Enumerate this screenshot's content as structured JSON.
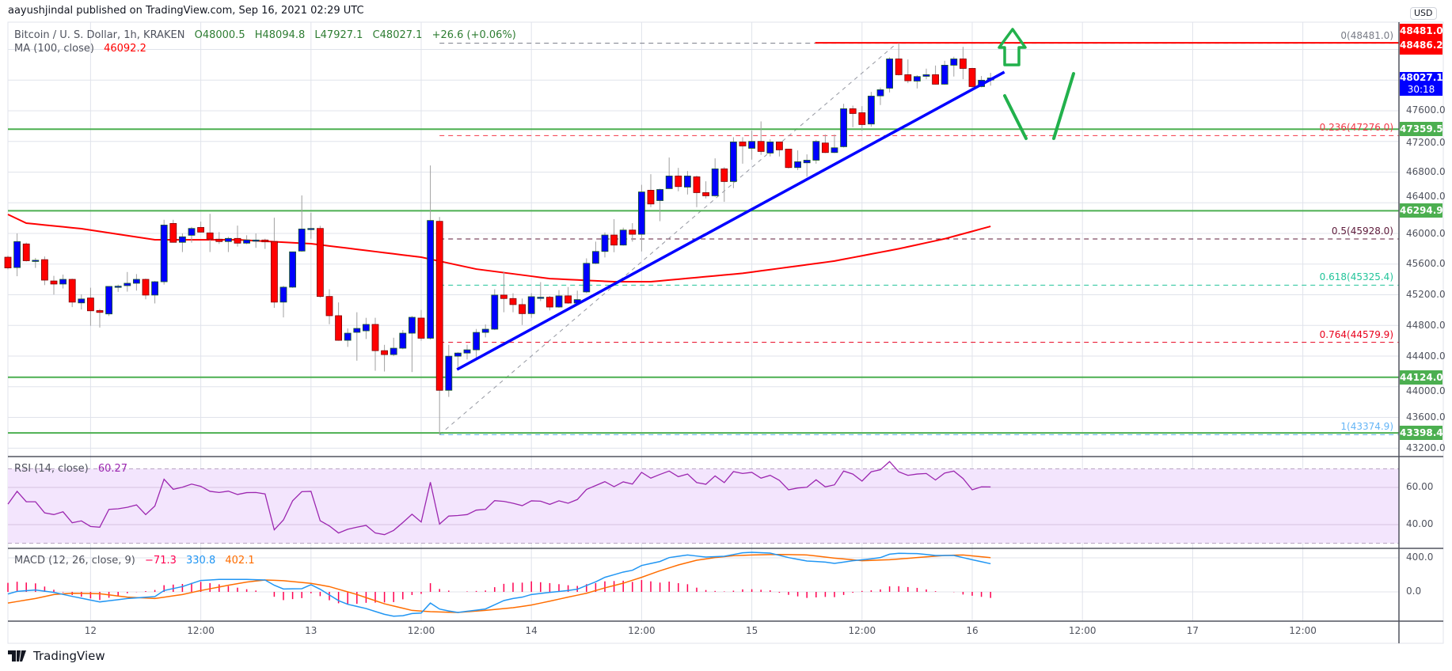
{
  "header": {
    "published": "aayushjindal published on TradingView.com, Sep 16, 2021 02:29 UTC"
  },
  "legend": {
    "symbol": "Bitcoin / U. S. Dollar, 1h, KRAKEN",
    "open": "O48000.5",
    "high": "H48094.8",
    "low": "L47927.1",
    "close": "C48027.1",
    "change": "+26.6 (+0.06%)",
    "ma_label": "MA (100, close)",
    "ma_value": "46092.2",
    "rsi_label": "RSI (14, close)",
    "rsi_value": "60.27",
    "macd_label": "MACD (12, 26, close, 9)",
    "macd_hist": "−71.3",
    "macd_value": "330.8",
    "macd_signal": "402.1"
  },
  "price_tags": {
    "high_hidden": "48481.0",
    "usd": "USD",
    "red": "48486.2",
    "last_price": "48027.1",
    "countdown": "30:18",
    "green": [
      "47359.5",
      "46294.9",
      "44124.0",
      "43398.4"
    ]
  },
  "footer": {
    "brand": "TradingView"
  },
  "colors": {
    "up": "#0000ff",
    "down": "#ff0000",
    "ma": "#ff0000",
    "rsi": "#9c27b0",
    "macd": "#2196f3",
    "signal": "#ff6d00",
    "hist": "#ff0050",
    "support": "#4caf50",
    "trend": "#0000ff",
    "annot": "#22b14c"
  },
  "chart_data": {
    "type": "candlestick",
    "title": "Bitcoin / U. S. Dollar, 1h, KRAKEN",
    "start_time": "2021-09-11 15:00",
    "interval": "1h",
    "ylim": [
      43050,
      48700
    ],
    "candles_ohlc": [
      [
        45690,
        45710,
        45530,
        45550
      ],
      [
        45555,
        46000,
        45442,
        45894
      ],
      [
        45863,
        45880,
        45634,
        45644
      ],
      [
        45650,
        45680,
        45550,
        45650
      ],
      [
        45658,
        45700,
        45326,
        45391
      ],
      [
        45380,
        45446,
        45203,
        45340
      ],
      [
        45340,
        45463,
        45282,
        45401
      ],
      [
        45401,
        45410,
        45039,
        45104
      ],
      [
        45094,
        45206,
        45008,
        45145
      ],
      [
        45158,
        45292,
        44796,
        44991
      ],
      [
        44994,
        45015,
        44772,
        44970
      ],
      [
        44950,
        45309,
        44923,
        45309
      ],
      [
        45312,
        45333,
        45237,
        45312
      ],
      [
        45319,
        45497,
        45241,
        45350
      ],
      [
        45350,
        45470,
        45254,
        45401
      ],
      [
        45401,
        45410,
        45141,
        45196
      ],
      [
        45196,
        45380,
        45087,
        45370
      ],
      [
        45370,
        46178,
        45333,
        46109
      ],
      [
        46130,
        46178,
        45880,
        45884
      ],
      [
        45884,
        46000,
        45757,
        45956
      ],
      [
        45976,
        46085,
        45880,
        46065
      ],
      [
        46078,
        46154,
        46010,
        46017
      ],
      [
        46007,
        46256,
        45757,
        45925
      ],
      [
        45925,
        46017,
        45863,
        45894
      ],
      [
        45894,
        45956,
        45757,
        45935
      ],
      [
        45935,
        46102,
        45829,
        45873
      ],
      [
        45873,
        45976,
        45860,
        45914
      ],
      [
        45914,
        46000,
        45812,
        45914
      ],
      [
        45914,
        45932,
        45798,
        45890
      ],
      [
        45894,
        46205,
        45029,
        45104
      ],
      [
        45104,
        45316,
        44905,
        45299
      ],
      [
        45299,
        45760,
        45290,
        45760
      ],
      [
        45770,
        46496,
        45760,
        46058
      ],
      [
        46065,
        46270,
        45931,
        46065
      ],
      [
        46065,
        46099,
        45162,
        45178
      ],
      [
        45178,
        45271,
        44816,
        44927
      ],
      [
        44927,
        45100,
        44600,
        44606
      ],
      [
        44606,
        44761,
        44520,
        44699
      ],
      [
        44710,
        44972,
        44340,
        44761
      ],
      [
        44730,
        44899,
        44623,
        44813
      ],
      [
        44813,
        44899,
        44209,
        44471
      ],
      [
        44471,
        44547,
        44199,
        44420
      ],
      [
        44420,
        44640,
        44400,
        44503
      ],
      [
        44503,
        44740,
        44490,
        44699
      ],
      [
        44699,
        44923,
        44192,
        44906
      ],
      [
        44896,
        45002,
        44600,
        44633
      ],
      [
        44633,
        46886,
        44616,
        46169
      ],
      [
        46158,
        46214,
        43374.9,
        43954
      ],
      [
        43954,
        44547,
        43868,
        44399
      ],
      [
        44399,
        44450,
        44219,
        44440
      ],
      [
        44440,
        44547,
        44357,
        44482
      ],
      [
        44482,
        44754,
        44357,
        44709
      ],
      [
        44709,
        44813,
        44644,
        44751
      ],
      [
        44751,
        45272,
        44740,
        45196
      ],
      [
        45196,
        45503,
        44972,
        45151
      ],
      [
        45151,
        45220,
        44972,
        45072
      ],
      [
        45072,
        45151,
        44806,
        44954
      ],
      [
        44954,
        45220,
        44900,
        45175
      ],
      [
        45168,
        45365,
        45117,
        45168
      ],
      [
        45168,
        45185,
        44996,
        45040
      ],
      [
        45040,
        45261,
        45030,
        45186
      ],
      [
        45186,
        45300,
        45082,
        45092
      ],
      [
        45092,
        45254,
        45061,
        45137
      ],
      [
        45237,
        45675,
        45220,
        45610
      ],
      [
        45610,
        45893,
        45600,
        45765
      ],
      [
        45765,
        46013,
        45686,
        45979
      ],
      [
        45979,
        46186,
        45755,
        45848
      ],
      [
        45848,
        46075,
        45840,
        46044
      ],
      [
        46044,
        46134,
        45893,
        45989
      ],
      [
        45989,
        46634,
        45765,
        46541
      ],
      [
        46563,
        46773,
        46343,
        46384
      ],
      [
        46428,
        46584,
        46160,
        46573
      ],
      [
        46584,
        46990,
        46584,
        46749
      ],
      [
        46749,
        46855,
        46550,
        46611
      ],
      [
        46604,
        46814,
        46508,
        46749
      ],
      [
        46738,
        46756,
        46343,
        46532
      ],
      [
        46532,
        46680,
        46456,
        46491
      ],
      [
        46491,
        46979,
        46480,
        46842
      ],
      [
        46842,
        46866,
        46412,
        46677
      ],
      [
        46677,
        47255,
        46590,
        47193
      ],
      [
        47193,
        47255,
        46910,
        47141
      ],
      [
        47110,
        47340,
        46962,
        47200
      ],
      [
        47200,
        47461,
        47024,
        47069
      ],
      [
        47048,
        47227,
        47004,
        47193
      ],
      [
        47193,
        47193,
        47004,
        47090
      ],
      [
        47100,
        47100,
        46848,
        46859
      ],
      [
        46859,
        47083,
        46825,
        46935
      ],
      [
        46921,
        47031,
        46738,
        46955
      ],
      [
        46955,
        47220,
        46910,
        47200
      ],
      [
        47179,
        47289,
        47048,
        47055
      ],
      [
        47055,
        47289,
        47048,
        47117
      ],
      [
        47131,
        47691,
        47120,
        47626
      ],
      [
        47626,
        47667,
        47385,
        47564
      ],
      [
        47574,
        47660,
        47340,
        47420
      ],
      [
        47427,
        47846,
        47392,
        47791
      ],
      [
        47794,
        47901,
        47674,
        47874
      ],
      [
        47894,
        48297,
        47839,
        48276
      ],
      [
        48276,
        48481,
        48060,
        48070
      ],
      [
        48070,
        48269,
        47960,
        47991
      ],
      [
        47987,
        48063,
        47891,
        48046
      ],
      [
        48049,
        48149,
        48011,
        48070
      ],
      [
        48070,
        48190,
        47942,
        47946
      ],
      [
        47946,
        48252,
        47940,
        48194
      ],
      [
        48194,
        48304,
        48046,
        48276
      ],
      [
        48276,
        48434,
        48011,
        48152
      ],
      [
        48152,
        48160,
        47900,
        47915
      ],
      [
        47915,
        48053,
        47905,
        47998
      ],
      [
        48000.5,
        48094.8,
        47927.1,
        48027.1
      ]
    ],
    "ma100_keypoints": [
      [
        1,
        46248
      ],
      [
        3,
        46134
      ],
      [
        9,
        46062
      ],
      [
        17,
        45917
      ],
      [
        26,
        45917
      ],
      [
        34,
        45866
      ],
      [
        46,
        45690
      ],
      [
        52,
        45535
      ],
      [
        60,
        45411
      ],
      [
        67,
        45370
      ],
      [
        71,
        45370
      ],
      [
        81,
        45480
      ],
      [
        91,
        45640
      ],
      [
        98,
        45800
      ],
      [
        103,
        45930
      ],
      [
        108,
        46092.2
      ]
    ],
    "rsi": [
      51.0,
      57.9,
      52.3,
      52.3,
      46.3,
      45.4,
      46.9,
      41.0,
      42.0,
      39.0,
      38.6,
      48.2,
      48.5,
      49.3,
      50.6,
      45.4,
      50.0,
      64.4,
      59.0,
      60.1,
      61.8,
      60.6,
      57.9,
      57.3,
      58.0,
      56.2,
      57.2,
      57.3,
      56.5,
      37.2,
      42.5,
      52.8,
      57.7,
      57.9,
      42.1,
      39.3,
      35.5,
      37.5,
      38.6,
      39.6,
      35.5,
      34.6,
      36.9,
      41.1,
      45.6,
      41.4,
      62.8,
      40.3,
      44.6,
      44.9,
      45.4,
      47.8,
      48.2,
      52.9,
      52.5,
      51.5,
      50.2,
      52.8,
      52.6,
      50.9,
      52.8,
      51.5,
      53.5,
      58.9,
      61.0,
      63.1,
      60.4,
      63.0,
      61.8,
      68.1,
      65.0,
      67.0,
      68.8,
      65.8,
      67.2,
      62.6,
      61.7,
      66.2,
      62.6,
      68.5,
      67.5,
      68.1,
      65.0,
      66.5,
      63.8,
      58.7,
      59.7,
      60.1,
      64.1,
      60.3,
      61.4,
      68.8,
      67.2,
      63.4,
      68.4,
      69.5,
      73.9,
      68.4,
      66.5,
      67.2,
      67.5,
      64.0,
      67.7,
      68.8,
      64.8,
      58.7,
      60.3,
      60.27
    ],
    "rsi_levels": {
      "upper": 70,
      "lower": 30
    },
    "macd_keypoints": [
      [
        1,
        -25
      ],
      [
        2,
        6
      ],
      [
        4,
        22
      ],
      [
        6,
        -6
      ],
      [
        8,
        -53
      ],
      [
        11,
        -118
      ],
      [
        14,
        -78
      ],
      [
        17,
        -56
      ],
      [
        18,
        16
      ],
      [
        20,
        62
      ],
      [
        22,
        134
      ],
      [
        24,
        146
      ],
      [
        27,
        146
      ],
      [
        29,
        140
      ],
      [
        30,
        78
      ],
      [
        31,
        34
      ],
      [
        33,
        37
      ],
      [
        34,
        84
      ],
      [
        35,
        31
      ],
      [
        37,
        -103
      ],
      [
        38,
        -146
      ],
      [
        40,
        -196
      ],
      [
        42,
        -264
      ],
      [
        43,
        -286
      ],
      [
        44,
        -280
      ],
      [
        45,
        -255
      ],
      [
        46,
        -249
      ],
      [
        47,
        -131
      ],
      [
        48,
        -202
      ],
      [
        49,
        -224
      ],
      [
        50,
        -242
      ],
      [
        53,
        -201
      ],
      [
        55,
        -102
      ],
      [
        56,
        -78
      ],
      [
        57,
        -62
      ],
      [
        58,
        -31
      ],
      [
        60,
        -6
      ],
      [
        62,
        16
      ],
      [
        63,
        31
      ],
      [
        65,
        118
      ],
      [
        66,
        171
      ],
      [
        68,
        233
      ],
      [
        69,
        254
      ],
      [
        70,
        310
      ],
      [
        72,
        357
      ],
      [
        73,
        403
      ],
      [
        75,
        434
      ],
      [
        77,
        409
      ],
      [
        79,
        419
      ],
      [
        81,
        459
      ],
      [
        82,
        465
      ],
      [
        84,
        456
      ],
      [
        86,
        403
      ],
      [
        88,
        363
      ],
      [
        90,
        350
      ],
      [
        91,
        335
      ],
      [
        93,
        366
      ],
      [
        95,
        388
      ],
      [
        96,
        403
      ],
      [
        97,
        443
      ],
      [
        98,
        453
      ],
      [
        100,
        450
      ],
      [
        101,
        440
      ],
      [
        102,
        428
      ],
      [
        104,
        428
      ],
      [
        106,
        378
      ],
      [
        108,
        330.8
      ]
    ],
    "signal_keypoints": [
      [
        1,
        -131
      ],
      [
        4,
        -78
      ],
      [
        6,
        -31
      ],
      [
        8,
        -16
      ],
      [
        11,
        -22
      ],
      [
        14,
        -62
      ],
      [
        17,
        -78
      ],
      [
        20,
        -31
      ],
      [
        22,
        16
      ],
      [
        25,
        78
      ],
      [
        27,
        115
      ],
      [
        29,
        140
      ],
      [
        31,
        131
      ],
      [
        34,
        100
      ],
      [
        36,
        62
      ],
      [
        39,
        -31
      ],
      [
        42,
        -140
      ],
      [
        45,
        -218
      ],
      [
        47,
        -233
      ],
      [
        50,
        -242
      ],
      [
        53,
        -217
      ],
      [
        56,
        -186
      ],
      [
        58,
        -155
      ],
      [
        60,
        -109
      ],
      [
        62,
        -62
      ],
      [
        64,
        -16
      ],
      [
        66,
        47
      ],
      [
        68,
        102
      ],
      [
        70,
        171
      ],
      [
        72,
        248
      ],
      [
        74,
        316
      ],
      [
        76,
        372
      ],
      [
        78,
        403
      ],
      [
        80,
        425
      ],
      [
        82,
        434
      ],
      [
        85,
        440
      ],
      [
        88,
        434
      ],
      [
        91,
        397
      ],
      [
        94,
        366
      ],
      [
        97,
        378
      ],
      [
        100,
        403
      ],
      [
        103,
        428
      ],
      [
        105,
        434
      ],
      [
        108,
        402.1
      ]
    ],
    "price_axis": {
      "ticks": [
        "47600.0",
        "47200.0",
        "46800.0",
        "46400.0",
        "46000.0",
        "45600.0",
        "45200.0",
        "44800.0",
        "44400.0",
        "44000.0",
        "43600.0",
        "43200.0"
      ]
    },
    "rsi_axis": {
      "ticks": [
        "60.00",
        "40.00"
      ]
    },
    "macd_axis": {
      "ticks": [
        "400.0",
        "0.0"
      ]
    },
    "time_axis": {
      "ticks": [
        {
          "label": "12",
          "hour": 9
        },
        {
          "label": "12:00",
          "hour": 21
        },
        {
          "label": "13",
          "hour": 33
        },
        {
          "label": "12:00",
          "hour": 45
        },
        {
          "label": "14",
          "hour": 57
        },
        {
          "label": "12:00",
          "hour": 69
        },
        {
          "label": "15",
          "hour": 81
        },
        {
          "label": "12:00",
          "hour": 93
        },
        {
          "label": "16",
          "hour": 105
        },
        {
          "label": "12:00",
          "hour": 117
        },
        {
          "label": "17",
          "hour": 129
        },
        {
          "label": "12:00",
          "hour": 141
        }
      ]
    },
    "fib": {
      "from": {
        "hour": 47,
        "price": 43374.9
      },
      "to": {
        "hour": 96.8,
        "price": 48481.0
      },
      "levels": [
        {
          "label": "0(48481.0)",
          "price": 48481.0,
          "color": "#787b86"
        },
        {
          "label": "0.236(47276.0)",
          "price": 47276.0,
          "color": "#f23645"
        },
        {
          "label": "0.5(45928.0)",
          "price": 45928.0,
          "color": "#5d1a3a"
        },
        {
          "label": "0.618(45325.4)",
          "price": 45325.4,
          "color": "#22c49a"
        },
        {
          "label": "0.764(44579.9)",
          "price": 44579.9,
          "color": "#e8001c"
        },
        {
          "label": "1(43374.9)",
          "price": 43374.9,
          "color": "#64b5f6"
        }
      ]
    },
    "support_lines": [
      47359.5,
      46294.9,
      44124.0,
      43398.4
    ],
    "resistance_line": {
      "price": 48486.2,
      "from_hour": 87.9
    },
    "trendline": {
      "from": {
        "hour": 48.9,
        "price": 44225
      },
      "to": {
        "hour": 108.5,
        "price": 48105
      }
    }
  }
}
